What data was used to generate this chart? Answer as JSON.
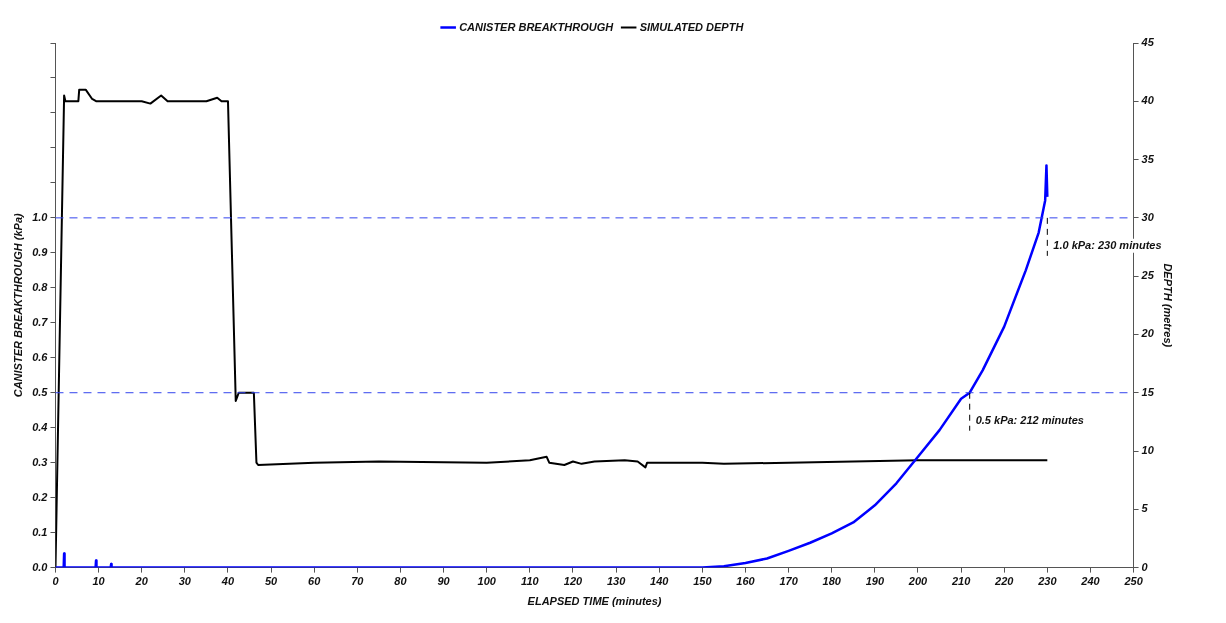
{
  "chart_data": {
    "type": "line",
    "xlabel": "ELAPSED TIME (minutes)",
    "ylabel": "CANISTER BREAKTHROUGH (kPa)",
    "y2label": "DEPTH (metres)",
    "xlim": [
      0,
      250
    ],
    "xticks": [
      0,
      10,
      20,
      30,
      40,
      50,
      60,
      70,
      80,
      90,
      100,
      110,
      120,
      130,
      140,
      150,
      160,
      170,
      180,
      190,
      200,
      210,
      220,
      230,
      240,
      250
    ],
    "ylim": [
      0,
      1.5
    ],
    "yticks": [
      {
        "value": 0,
        "label": "0.0"
      },
      {
        "value": 0.1,
        "label": "0.1"
      },
      {
        "value": 0.2,
        "label": "0.2"
      },
      {
        "value": 0.3,
        "label": "0.3"
      },
      {
        "value": 0.4,
        "label": "0.4"
      },
      {
        "value": 0.5,
        "label": "0.5"
      },
      {
        "value": 0.6,
        "label": "0.6"
      },
      {
        "value": 0.7,
        "label": "0.7"
      },
      {
        "value": 0.8,
        "label": "0.8"
      },
      {
        "value": 0.9,
        "label": "0.9"
      },
      {
        "value": 1,
        "label": "1.0"
      },
      {
        "value": 1.1,
        "label": null
      },
      {
        "value": 1.2,
        "label": null
      },
      {
        "value": 1.3,
        "label": null
      },
      {
        "value": 1.4,
        "label": null
      },
      {
        "value": 1.5,
        "label": null
      }
    ],
    "y2lim": [
      0,
      45
    ],
    "y2ticks": [
      0,
      5,
      10,
      15,
      20,
      25,
      30,
      35,
      40,
      45
    ],
    "legend": "top",
    "marker": "none",
    "line_style": "solid",
    "series": [
      {
        "name": "CANISTER BREAKTHROUGH",
        "color": "#0000ff",
        "x": [
          0,
          1.9,
          2,
          2.1,
          9.3,
          9.4,
          9.5,
          12.8,
          12.9,
          13,
          150,
          155,
          160,
          165,
          170,
          175,
          180,
          185,
          190,
          195,
          200,
          205,
          210,
          212,
          215,
          220,
          225,
          228,
          229.5,
          229.8,
          230
        ],
        "values": [
          0,
          0,
          0.04,
          0,
          0,
          0.02,
          0,
          0,
          0.01,
          0,
          0,
          0.004,
          0.013,
          0.026,
          0.048,
          0.071,
          0.098,
          0.129,
          0.178,
          0.241,
          0.317,
          0.393,
          0.483,
          0.5,
          0.564,
          0.689,
          0.85,
          0.958,
          1.05,
          1.15,
          1.06
        ]
      },
      {
        "name": "SIMULATED DEPTH",
        "color": "#000000",
        "axis": "y2",
        "x": [
          0,
          2,
          2.3,
          5.3,
          5.5,
          7,
          8.5,
          9.5,
          20,
          22,
          24.5,
          26,
          35,
          37.5,
          38.5,
          40,
          41.8,
          42.5,
          46,
          46.6,
          47,
          60,
          75,
          100,
          110,
          113.9,
          114.5,
          118,
          120,
          122,
          125,
          132,
          135,
          136.8,
          137.2,
          150,
          155,
          170,
          200,
          230
        ],
        "values": [
          0,
          40.5,
          40,
          40,
          41,
          41,
          40.2,
          40,
          40,
          39.8,
          40.5,
          40,
          40,
          40.3,
          40,
          40,
          14.3,
          15,
          15,
          9,
          8.8,
          9,
          9.1,
          9,
          9.2,
          9.5,
          9,
          8.8,
          9.1,
          8.9,
          9.1,
          9.2,
          9.1,
          8.6,
          9,
          9,
          8.9,
          9,
          9.2,
          9.2
        ]
      }
    ],
    "ref_lines": [
      {
        "axis": "y",
        "value": 0.5,
        "color": "#3344ee",
        "line_style": "dashed"
      },
      {
        "axis": "y",
        "value": 1,
        "color": "#3344ee",
        "line_style": "dashed"
      }
    ],
    "annotations": [
      {
        "text": "0.5 kPa: 212 minutes",
        "x": 212,
        "y": 0.5
      },
      {
        "text": "1.0 kPa: 230 minutes",
        "x": 230,
        "y": 1
      }
    ]
  }
}
